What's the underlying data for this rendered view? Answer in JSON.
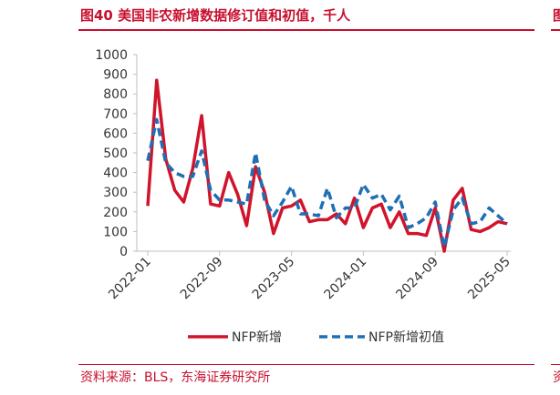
{
  "figure": {
    "title": "图40  美国非农新增数据修订值和初值，千人",
    "source": "资料来源：BLS，东海证券研究所",
    "edge_title_char": "图",
    "edge_source_char": "资"
  },
  "colors": {
    "accent": "#c8102e",
    "revised": "#d0142c",
    "initial": "#1f6fb5",
    "axis": "#bfbfbf",
    "text": "#333333"
  },
  "chart_data": {
    "type": "line",
    "x_tick_labels": [
      "2022-01",
      "2022-09",
      "2023-05",
      "2024-01",
      "2024-09",
      "2025-05"
    ],
    "x_tick_indices": [
      0,
      8,
      16,
      24,
      32,
      40
    ],
    "ylim": [
      0,
      1000
    ],
    "y_ticks": [
      0,
      100,
      200,
      300,
      400,
      500,
      600,
      700,
      800,
      900,
      1000
    ],
    "grid": false,
    "legend": "bottom",
    "series": [
      {
        "name": "NFP新增",
        "style": "solid",
        "color": "#d0142c",
        "values": [
          230,
          870,
          470,
          310,
          250,
          420,
          690,
          240,
          230,
          400,
          290,
          130,
          430,
          300,
          90,
          220,
          230,
          260,
          150,
          160,
          160,
          190,
          140,
          270,
          120,
          220,
          240,
          120,
          200,
          90,
          90,
          80,
          220,
          0,
          260,
          320,
          110,
          100,
          120,
          150,
          140
        ]
      },
      {
        "name": "NFP新增初值",
        "style": "dashed",
        "color": "#1f6fb5",
        "values": [
          460,
          670,
          450,
          400,
          380,
          380,
          510,
          310,
          260,
          260,
          250,
          240,
          500,
          260,
          180,
          250,
          330,
          190,
          190,
          180,
          320,
          170,
          220,
          220,
          340,
          270,
          290,
          210,
          280,
          120,
          140,
          170,
          250,
          20,
          210,
          270,
          140,
          150,
          220,
          180,
          140
        ]
      }
    ]
  }
}
